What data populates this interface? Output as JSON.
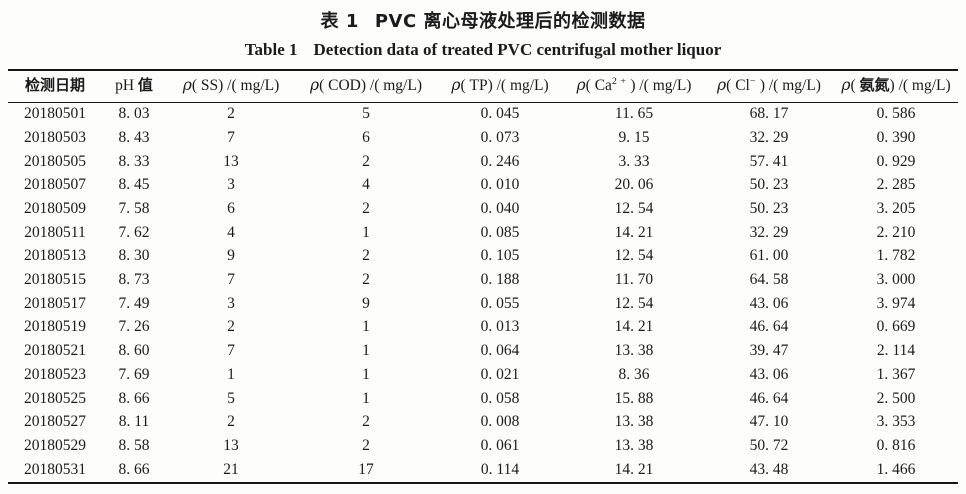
{
  "caption": {
    "zh": {
      "label": "表 1",
      "title": "PVC 离心母液处理后的检测数据"
    },
    "en": {
      "label": "Table 1",
      "title": "Detection data of treated PVC centrifugal mother liquor"
    }
  },
  "table": {
    "headers": [
      {
        "segments": [
          {
            "t": "检测日期",
            "s": "cjk"
          }
        ]
      },
      {
        "segments": [
          {
            "t": "pH ",
            "s": "lat"
          },
          {
            "t": "值",
            "s": "cjk"
          }
        ]
      },
      {
        "segments": [
          {
            "t": "ρ",
            "s": "rho"
          },
          {
            "t": "( SS) /( mg/L)",
            "s": "lat"
          }
        ]
      },
      {
        "segments": [
          {
            "t": "ρ",
            "s": "rho"
          },
          {
            "t": "( COD) /( mg/L)",
            "s": "lat"
          }
        ]
      },
      {
        "segments": [
          {
            "t": "ρ",
            "s": "rho"
          },
          {
            "t": "( TP) /( mg/L)",
            "s": "lat"
          }
        ]
      },
      {
        "segments": [
          {
            "t": "ρ",
            "s": "rho"
          },
          {
            "t": "( Ca",
            "s": "lat"
          },
          {
            "t": "2 +",
            "s": "sup"
          },
          {
            "t": " ) /( mg/L)",
            "s": "lat"
          }
        ]
      },
      {
        "segments": [
          {
            "t": "ρ",
            "s": "rho"
          },
          {
            "t": "( Cl",
            "s": "lat"
          },
          {
            "t": "−",
            "s": "sup"
          },
          {
            "t": " ) /( mg/L)",
            "s": "lat"
          }
        ]
      },
      {
        "segments": [
          {
            "t": "ρ",
            "s": "rho"
          },
          {
            "t": "( ",
            "s": "lat"
          },
          {
            "t": "氨氮",
            "s": "cjk"
          },
          {
            "t": ") /( mg/L)",
            "s": "lat"
          }
        ]
      }
    ],
    "rows": [
      [
        "20180501",
        "8. 03",
        "2",
        "5",
        "0. 045",
        "11. 65",
        "68. 17",
        "0. 586"
      ],
      [
        "20180503",
        "8. 43",
        "7",
        "6",
        "0. 073",
        "9. 15",
        "32. 29",
        "0. 390"
      ],
      [
        "20180505",
        "8. 33",
        "13",
        "2",
        "0. 246",
        "3. 33",
        "57. 41",
        "0. 929"
      ],
      [
        "20180507",
        "8. 45",
        "3",
        "4",
        "0. 010",
        "20. 06",
        "50. 23",
        "2. 285"
      ],
      [
        "20180509",
        "7. 58",
        "6",
        "2",
        "0. 040",
        "12. 54",
        "50. 23",
        "3. 205"
      ],
      [
        "20180511",
        "7. 62",
        "4",
        "1",
        "0. 085",
        "14. 21",
        "32. 29",
        "2. 210"
      ],
      [
        "20180513",
        "8. 30",
        "9",
        "2",
        "0. 105",
        "12. 54",
        "61. 00",
        "1. 782"
      ],
      [
        "20180515",
        "8. 73",
        "7",
        "2",
        "0. 188",
        "11. 70",
        "64. 58",
        "3. 000"
      ],
      [
        "20180517",
        "7. 49",
        "3",
        "9",
        "0. 055",
        "12. 54",
        "43. 06",
        "3. 974"
      ],
      [
        "20180519",
        "7. 26",
        "2",
        "1",
        "0. 013",
        "14. 21",
        "46. 64",
        "0. 669"
      ],
      [
        "20180521",
        "8. 60",
        "7",
        "1",
        "0. 064",
        "13. 38",
        "39. 47",
        "2. 114"
      ],
      [
        "20180523",
        "7. 69",
        "1",
        "1",
        "0. 021",
        "8. 36",
        "43. 06",
        "1. 367"
      ],
      [
        "20180525",
        "8. 66",
        "5",
        "1",
        "0. 058",
        "15. 88",
        "46. 64",
        "2. 500"
      ],
      [
        "20180527",
        "8. 11",
        "2",
        "2",
        "0. 008",
        "13. 38",
        "47. 10",
        "3. 353"
      ],
      [
        "20180529",
        "8. 58",
        "13",
        "2",
        "0. 061",
        "13. 38",
        "50. 72",
        "0. 816"
      ],
      [
        "20180531",
        "8. 66",
        "21",
        "17",
        "0. 114",
        "14. 21",
        "43. 48",
        "1. 466"
      ]
    ]
  }
}
